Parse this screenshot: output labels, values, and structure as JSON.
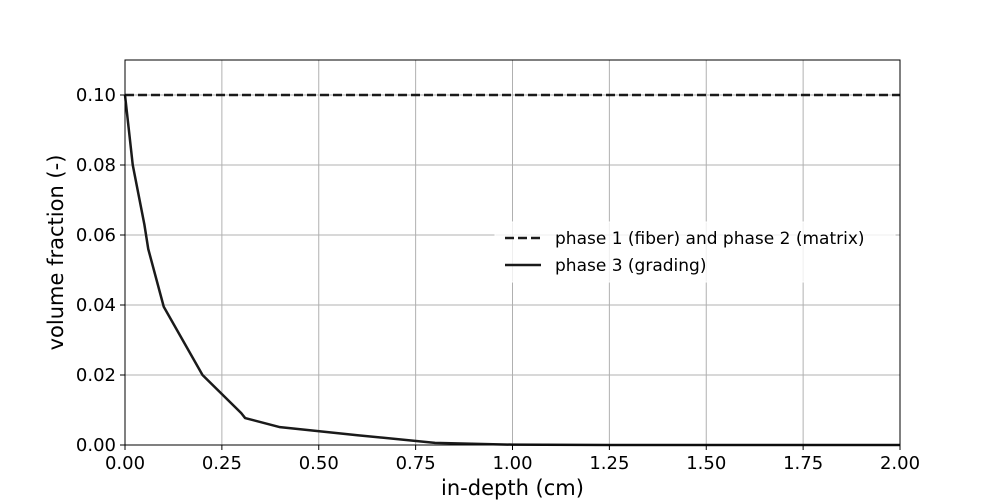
{
  "chart_data": {
    "type": "line",
    "title": "",
    "xlabel": "in-depth (cm)",
    "ylabel": "volume fraction (-)",
    "xlim": [
      0,
      2
    ],
    "ylim": [
      0,
      0.11
    ],
    "grid": true,
    "legend_position": "center-right",
    "x_ticks": [
      "0.00",
      "0.25",
      "0.50",
      "0.75",
      "1.00",
      "1.25",
      "1.50",
      "1.75",
      "2.00"
    ],
    "y_ticks": [
      "0.00",
      "0.02",
      "0.04",
      "0.06",
      "0.08",
      "0.10"
    ],
    "series": [
      {
        "name": "phase 1 (fiber) and phase 2 (matrix)",
        "style": "dashed",
        "color": "#1a1a1a",
        "x": [
          0,
          2
        ],
        "y": [
          0.1,
          0.1
        ]
      },
      {
        "name": "phase 3 (grading)",
        "style": "solid",
        "color": "#1a1a1a",
        "x": [
          0,
          0.02,
          0.05,
          0.06,
          0.1,
          0.2,
          0.3,
          0.31,
          0.4,
          0.6,
          0.8,
          1.0,
          1.25,
          1.5,
          2.0
        ],
        "y": [
          0.1,
          0.08,
          0.063,
          0.056,
          0.0395,
          0.02,
          0.0091,
          0.0077,
          0.0051,
          0.0028,
          0.0006,
          0.0001,
          0.0,
          0.0,
          0.0
        ]
      }
    ]
  }
}
